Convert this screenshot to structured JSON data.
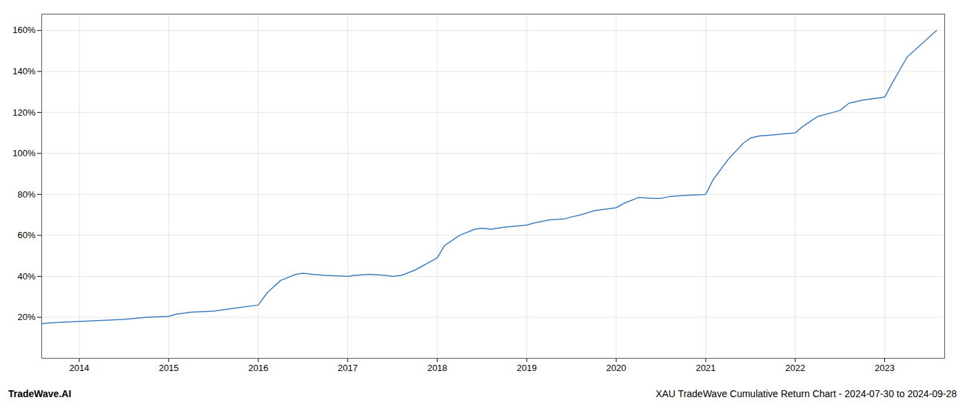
{
  "chart_data": {
    "type": "line",
    "title": "XAU TradeWave Cumulative Return Chart - 2024-07-30 to 2024-09-28",
    "annotations": [
      "TradeWave.AI"
    ],
    "color": "#3a7abf",
    "x": [
      2013.58,
      2013.75,
      2014.0,
      2014.25,
      2014.5,
      2014.75,
      2015.0,
      2015.08,
      2015.25,
      2015.5,
      2015.75,
      2016.0,
      2016.1,
      2016.25,
      2016.42,
      2016.5,
      2016.6,
      2016.75,
      2017.0,
      2017.08,
      2017.25,
      2017.42,
      2017.5,
      2017.6,
      2017.75,
      2018.0,
      2018.08,
      2018.25,
      2018.42,
      2018.5,
      2018.6,
      2018.75,
      2019.0,
      2019.08,
      2019.25,
      2019.42,
      2019.5,
      2019.6,
      2019.75,
      2020.0,
      2020.08,
      2020.25,
      2020.4,
      2020.5,
      2020.6,
      2020.75,
      2021.0,
      2021.08,
      2021.25,
      2021.42,
      2021.5,
      2021.6,
      2021.75,
      2022.0,
      2022.08,
      2022.25,
      2022.42,
      2022.5,
      2022.6,
      2022.75,
      2023.0,
      2023.08,
      2023.25,
      2023.58
    ],
    "values": [
      17.0,
      17.5,
      18.0,
      18.5,
      19.0,
      20.0,
      20.5,
      21.5,
      22.5,
      23.0,
      24.5,
      26.0,
      32.0,
      38.0,
      41.0,
      41.5,
      41.0,
      40.5,
      40.0,
      40.5,
      41.0,
      40.5,
      40.0,
      40.5,
      43.0,
      49.0,
      55.0,
      60.0,
      63.0,
      63.5,
      63.0,
      64.0,
      65.0,
      66.0,
      67.5,
      68.0,
      69.0,
      70.0,
      72.0,
      73.5,
      75.5,
      78.5,
      78.0,
      78.0,
      79.0,
      79.5,
      80.0,
      87.0,
      97.0,
      105.0,
      107.5,
      108.5,
      109.0,
      110.0,
      113.0,
      118.0,
      120.0,
      121.0,
      124.5,
      126.0,
      127.5,
      134.0,
      147.0,
      160.0
    ],
    "xlim": [
      2013.58,
      2023.67
    ],
    "ylim": [
      0,
      168
    ],
    "xticks": [
      2014,
      2015,
      2016,
      2017,
      2018,
      2019,
      2020,
      2021,
      2022,
      2023
    ],
    "yticks": [
      {
        "value": 20,
        "label": "20%"
      },
      {
        "value": 40,
        "label": "40%"
      },
      {
        "value": 60,
        "label": "60%"
      },
      {
        "value": 80,
        "label": "80%"
      },
      {
        "value": 100,
        "label": "100%"
      },
      {
        "value": 120,
        "label": "120%"
      },
      {
        "value": 140,
        "label": "140%"
      },
      {
        "value": 160,
        "label": "160%"
      }
    ],
    "grid": true
  }
}
